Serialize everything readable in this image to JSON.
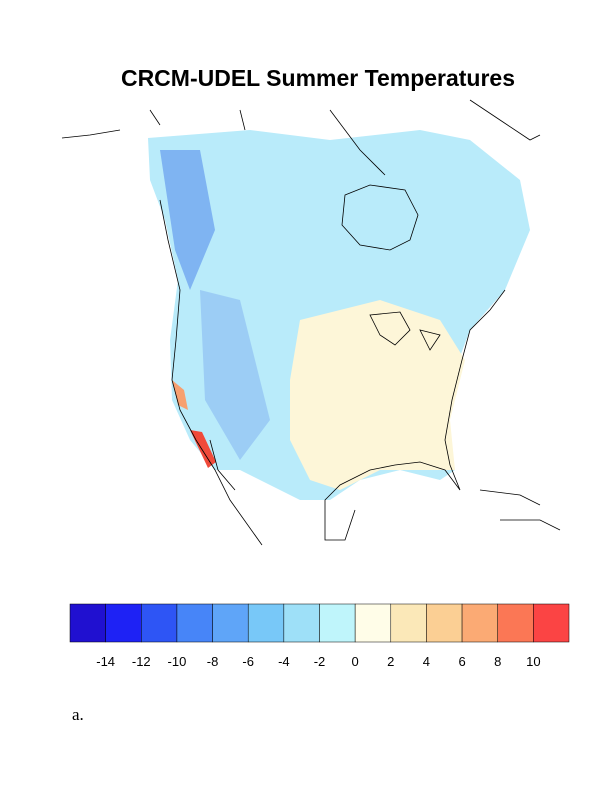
{
  "title": "CRCM-UDEL Summer Temperatures",
  "colorbar": {
    "colors": [
      "#2010d0",
      "#1e22f5",
      "#2e55f5",
      "#4785f8",
      "#5fa5f8",
      "#78c8f8",
      "#9ee0f8",
      "#bff5fb",
      "#fffde8",
      "#fbe8b8",
      "#fbcf94",
      "#fbaa74",
      "#fb7755",
      "#fb4444"
    ],
    "ticks": [
      -14,
      -12,
      -10,
      -8,
      -6,
      -4,
      -2,
      0,
      2,
      4,
      6,
      8,
      10
    ]
  },
  "caption": "a."
}
